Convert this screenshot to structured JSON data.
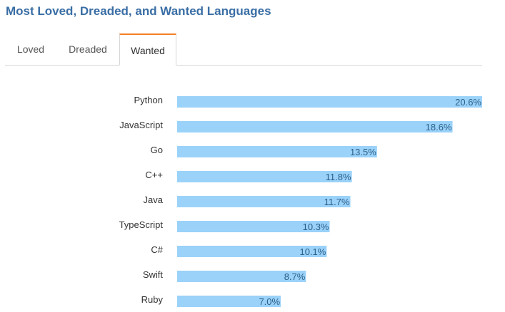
{
  "title": "Most Loved, Dreaded, and Wanted Languages",
  "tabs": [
    {
      "label": "Loved",
      "active": false
    },
    {
      "label": "Dreaded",
      "active": false
    },
    {
      "label": "Wanted",
      "active": true
    }
  ],
  "colors": {
    "bar": "#9ad2f9",
    "title": "#3a6ea5",
    "active_tab_accent": "#f48024",
    "value_label": "#2c5f8a"
  },
  "chart_data": {
    "type": "bar",
    "orientation": "horizontal",
    "categories": [
      "Python",
      "JavaScript",
      "Go",
      "C++",
      "Java",
      "TypeScript",
      "C#",
      "Swift",
      "Ruby"
    ],
    "values": [
      20.6,
      18.6,
      13.5,
      11.8,
      11.7,
      10.3,
      10.1,
      8.7,
      7.0
    ],
    "value_labels": [
      "20.6%",
      "18.6%",
      "13.5%",
      "11.8%",
      "11.7%",
      "10.3%",
      "10.1%",
      "8.7%",
      "7.0%"
    ],
    "xlim": [
      0,
      20.6
    ],
    "grid": false,
    "legend": "none"
  }
}
